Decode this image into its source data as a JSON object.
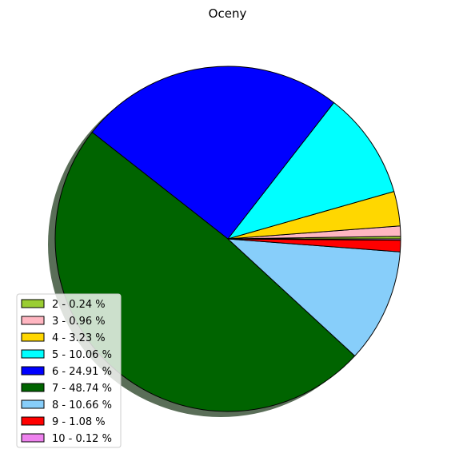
{
  "chart_data": {
    "type": "pie",
    "title": "Oceny",
    "slices": [
      {
        "label": "2",
        "value": 0.24,
        "color": "#9acd32",
        "legend": "2 - 0.24 %"
      },
      {
        "label": "3",
        "value": 0.96,
        "color": "#ffb6c1",
        "legend": "3 - 0.96 %"
      },
      {
        "label": "4",
        "value": 3.23,
        "color": "#ffd700",
        "legend": "4 - 3.23 %"
      },
      {
        "label": "5",
        "value": 10.06,
        "color": "#00ffff",
        "legend": "5 - 10.06 %"
      },
      {
        "label": "6",
        "value": 24.91,
        "color": "#0000ff",
        "legend": "6 - 24.91 %"
      },
      {
        "label": "7",
        "value": 48.74,
        "color": "#006400",
        "legend": "7 - 48.74 %"
      },
      {
        "label": "8",
        "value": 10.66,
        "color": "#87cefa",
        "legend": "8 - 10.66 %"
      },
      {
        "label": "9",
        "value": 1.08,
        "color": "#ff0000",
        "legend": "9 - 1.08 %"
      },
      {
        "label": "10",
        "value": 0.12,
        "color": "#ee82ee",
        "legend": "10 - 0.12 %"
      }
    ],
    "start_angle_deg": 0,
    "direction": "counterclockwise",
    "shadow": true,
    "legend_position": "lower-left"
  }
}
